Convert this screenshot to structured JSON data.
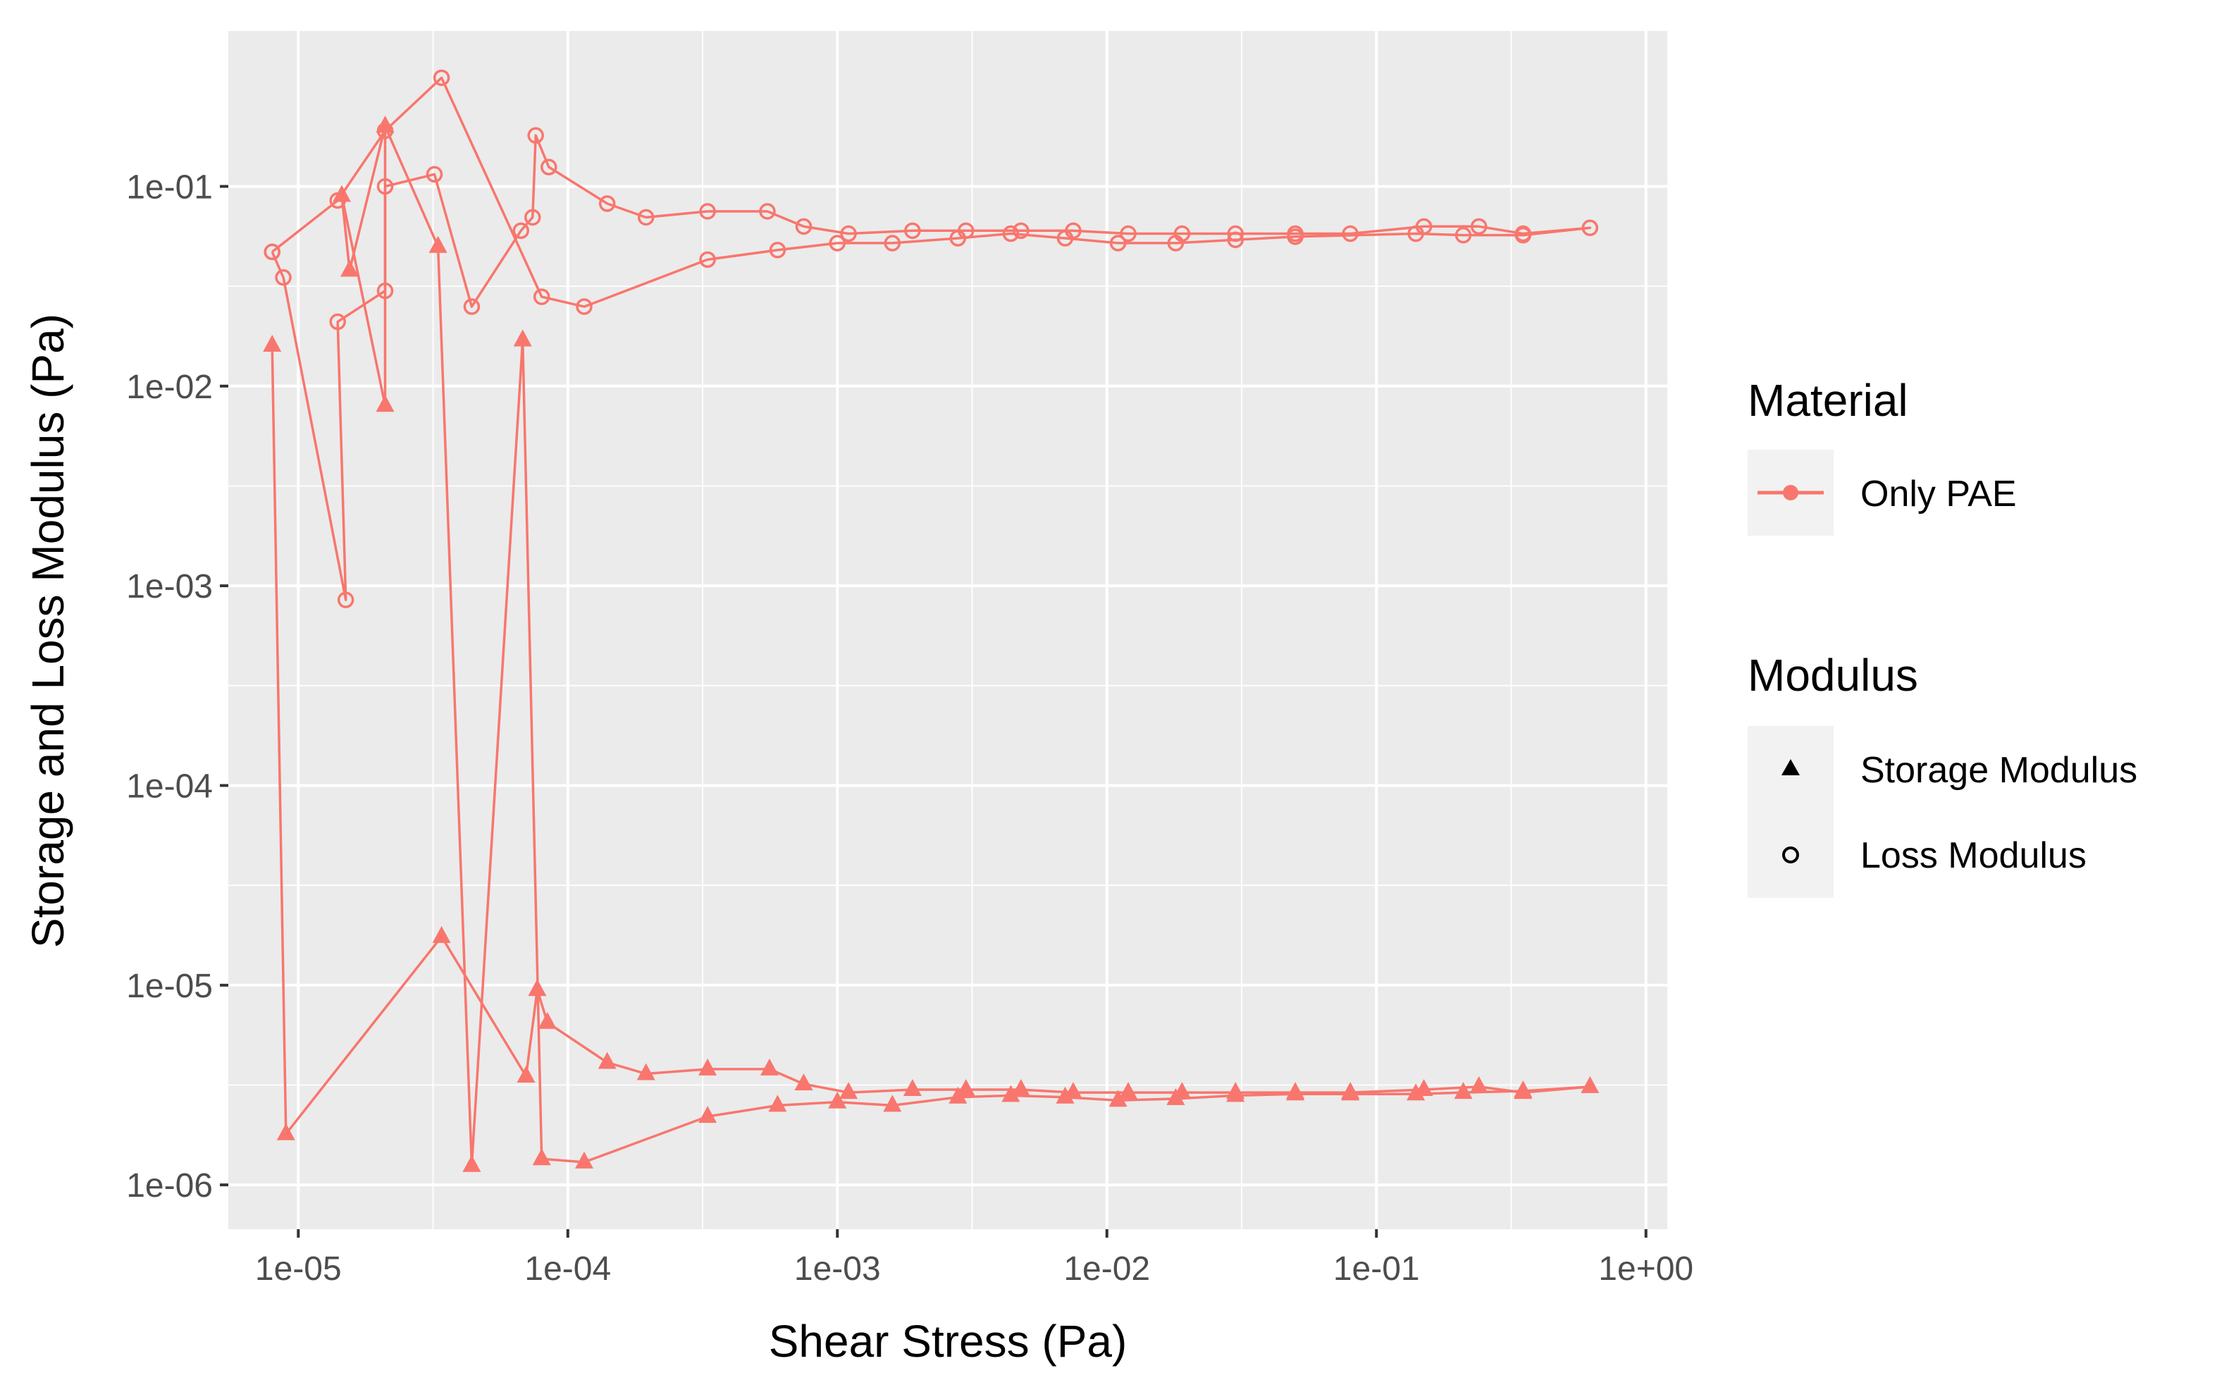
{
  "chart_data": {
    "type": "line",
    "x_scale": "log",
    "y_scale": "log",
    "xlabel": "Shear Stress (Pa)",
    "ylabel": "Storage and Loss Modulus (Pa)",
    "xlim": [
      5.5e-06,
      1.2
    ],
    "ylim": [
      6e-07,
      0.6
    ],
    "x_ticks": [
      1e-05,
      0.0001,
      0.001,
      0.01,
      0.1,
      1
    ],
    "x_tick_labels": [
      "1e-05",
      "1e-04",
      "1e-03",
      "1e-02",
      "1e-01",
      "1e+00"
    ],
    "y_ticks": [
      1e-06,
      1e-05,
      0.0001,
      0.001,
      0.01,
      0.1
    ],
    "y_tick_labels": [
      "1e-06",
      "1e-05",
      "1e-04",
      "1e-03",
      "1e-02",
      "1e-01"
    ],
    "grid": true,
    "color": "#F8766D",
    "background": "#EBEBEB",
    "legend": {
      "placement": "right",
      "groups": [
        {
          "title": "Material",
          "entries": [
            {
              "label": "Only PAE",
              "shape": "line-point"
            }
          ]
        },
        {
          "title": "Modulus",
          "entries": [
            {
              "label": "Storage Modulus",
              "shape": "triangle"
            },
            {
              "label": "Loss Modulus",
              "shape": "open-circle"
            }
          ]
        }
      ]
    },
    "series": [
      {
        "name": "Storage Modulus",
        "marker": "triangle",
        "points": [
          [
            8e-06,
            0.016
          ],
          [
            9e-06,
            1.8e-06
          ],
          [
            3.4e-05,
            1.75e-05
          ],
          [
            7e-05,
            3.5e-06
          ],
          [
            7.7e-05,
            9.5e-06
          ],
          [
            8.4e-05,
            6.5e-06
          ],
          [
            0.00014,
            4.1e-06
          ],
          [
            0.000195,
            3.6e-06
          ],
          [
            0.00033,
            3.8e-06
          ],
          [
            0.00056,
            3.8e-06
          ],
          [
            0.00075,
            3.2e-06
          ],
          [
            0.0011,
            2.9e-06
          ],
          [
            0.0019,
            3e-06
          ],
          [
            0.003,
            3e-06
          ],
          [
            0.0048,
            3e-06
          ],
          [
            0.0075,
            2.9e-06
          ],
          [
            0.012,
            2.9e-06
          ],
          [
            0.019,
            2.9e-06
          ],
          [
            0.03,
            2.9e-06
          ],
          [
            0.05,
            2.9e-06
          ],
          [
            0.08,
            2.9e-06
          ],
          [
            0.15,
            3e-06
          ],
          [
            0.24,
            3.1e-06
          ],
          [
            0.35,
            2.9e-06
          ],
          [
            0.62,
            3.1e-06
          ],
          [
            0.35,
            2.95e-06
          ],
          [
            0.21,
            2.9e-06
          ],
          [
            0.14,
            2.85e-06
          ],
          [
            0.08,
            2.85e-06
          ],
          [
            0.05,
            2.85e-06
          ],
          [
            0.03,
            2.8e-06
          ],
          [
            0.018,
            2.7e-06
          ],
          [
            0.011,
            2.65e-06
          ],
          [
            0.007,
            2.75e-06
          ],
          [
            0.0044,
            2.8e-06
          ],
          [
            0.0028,
            2.75e-06
          ],
          [
            0.0016,
            2.5e-06
          ],
          [
            0.001,
            2.6e-06
          ],
          [
            0.0006,
            2.5e-06
          ],
          [
            0.00033,
            2.2e-06
          ],
          [
            0.000115,
            1.3e-06
          ],
          [
            8e-05,
            1.35e-06
          ],
          [
            6.8e-05,
            0.017
          ],
          [
            4.4e-05,
            1.25e-06
          ],
          [
            3.3e-05,
            0.05
          ],
          [
            2.1e-05,
            0.2
          ],
          [
            1.55e-05,
            0.038
          ],
          [
            1.45e-05,
            0.09
          ],
          [
            2.1e-05,
            0.008
          ],
          [
            2.1e-05,
            0.2
          ]
        ]
      },
      {
        "name": "Loss Modulus",
        "marker": "open-circle",
        "points": [
          [
            8e-06,
            0.047
          ],
          [
            8.8e-06,
            0.035
          ],
          [
            1.5e-05,
            0.00085
          ],
          [
            1.4e-05,
            0.021
          ],
          [
            2.1e-05,
            0.03
          ],
          [
            2.1e-05,
            0.1
          ],
          [
            3.2e-05,
            0.115
          ],
          [
            4.4e-05,
            0.025
          ],
          [
            6.7e-05,
            0.06
          ],
          [
            7.4e-05,
            0.07
          ],
          [
            7.6e-05,
            0.18
          ],
          [
            8.5e-05,
            0.125
          ],
          [
            0.00014,
            0.082
          ],
          [
            0.000195,
            0.07
          ],
          [
            0.00033,
            0.075
          ],
          [
            0.00055,
            0.075
          ],
          [
            0.00075,
            0.063
          ],
          [
            0.0011,
            0.058
          ],
          [
            0.0019,
            0.06
          ],
          [
            0.003,
            0.06
          ],
          [
            0.0048,
            0.06
          ],
          [
            0.0075,
            0.06
          ],
          [
            0.012,
            0.058
          ],
          [
            0.019,
            0.058
          ],
          [
            0.03,
            0.058
          ],
          [
            0.05,
            0.058
          ],
          [
            0.08,
            0.058
          ],
          [
            0.15,
            0.063
          ],
          [
            0.24,
            0.063
          ],
          [
            0.35,
            0.058
          ],
          [
            0.62,
            0.062
          ],
          [
            0.35,
            0.057
          ],
          [
            0.21,
            0.057
          ],
          [
            0.14,
            0.058
          ],
          [
            0.05,
            0.056
          ],
          [
            0.03,
            0.054
          ],
          [
            0.018,
            0.052
          ],
          [
            0.011,
            0.052
          ],
          [
            0.007,
            0.055
          ],
          [
            0.0044,
            0.058
          ],
          [
            0.0028,
            0.055
          ],
          [
            0.0016,
            0.052
          ],
          [
            0.001,
            0.052
          ],
          [
            0.0006,
            0.048
          ],
          [
            0.00033,
            0.043
          ],
          [
            0.000115,
            0.025
          ],
          [
            8e-05,
            0.028
          ],
          [
            3.4e-05,
            0.35
          ],
          [
            2.1e-05,
            0.19
          ],
          [
            1.4e-05,
            0.085
          ],
          [
            8e-06,
            0.047
          ]
        ]
      }
    ]
  }
}
